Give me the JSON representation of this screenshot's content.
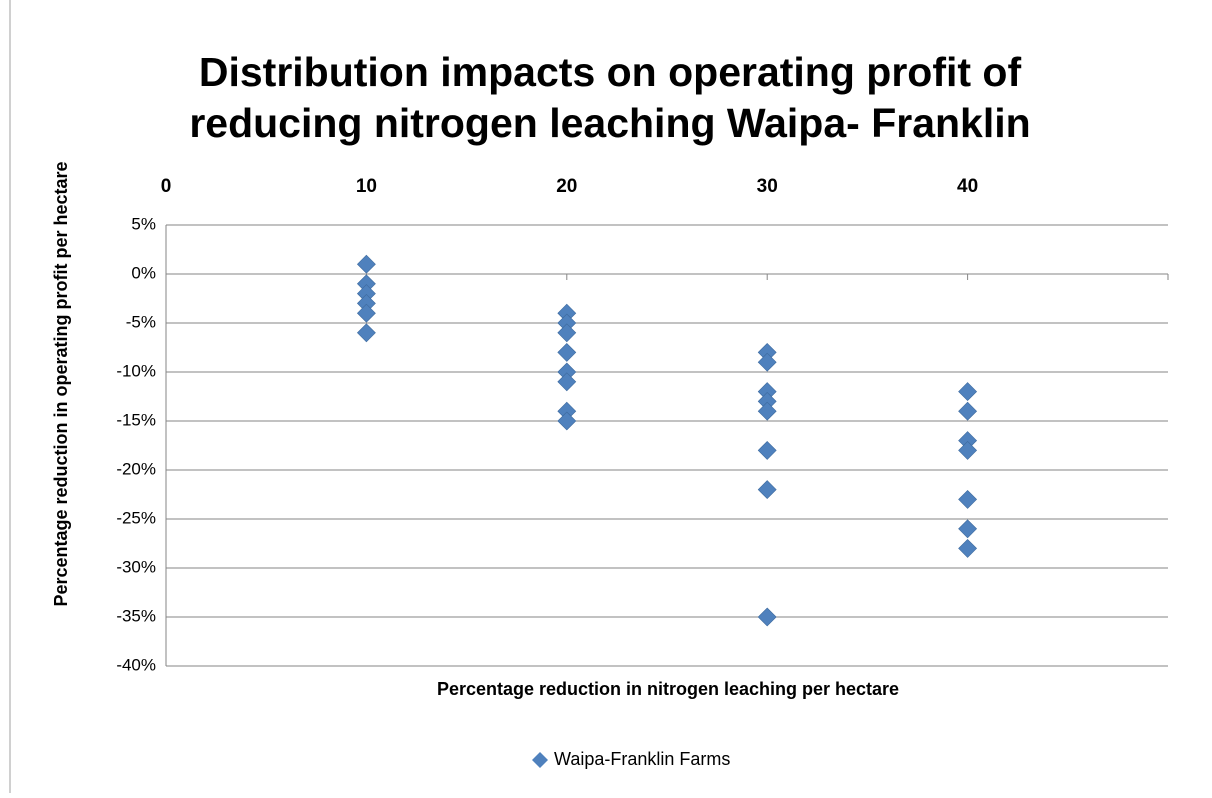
{
  "chart_data": {
    "type": "scatter",
    "title": [
      "Distribution impacts on operating profit of",
      "reducing nitrogen leaching Waipa- Franklin"
    ],
    "x_label": "Percentage reduction in nitrogen leaching per hectare",
    "y_label": "Percentage reduction in operating profit per hectare",
    "xlim": [
      0,
      50
    ],
    "xticks": [
      0,
      10,
      20,
      30,
      40
    ],
    "ylim": [
      -40,
      5
    ],
    "yticks": [
      {
        "value": 5,
        "label": "5%"
      },
      {
        "value": 0,
        "label": "0%"
      },
      {
        "value": -5,
        "label": "-5%"
      },
      {
        "value": -10,
        "label": "-10%"
      },
      {
        "value": -15,
        "label": "-15%"
      },
      {
        "value": -20,
        "label": "-20%"
      },
      {
        "value": -25,
        "label": "-25%"
      },
      {
        "value": -30,
        "label": "-30%"
      },
      {
        "value": -35,
        "label": "-35%"
      },
      {
        "value": -40,
        "label": "-40%"
      }
    ],
    "grid": true,
    "legend": "bottom",
    "series": [
      {
        "name": "Waipa-Franklin Farms",
        "color": "#4f81bd",
        "x": [
          10,
          10,
          10,
          10,
          10,
          10,
          20,
          20,
          20,
          20,
          20,
          20,
          20,
          20,
          30,
          30,
          30,
          30,
          30,
          30,
          30,
          30,
          40,
          40,
          40,
          40,
          40,
          40,
          40
        ],
        "values": [
          1,
          -1,
          -2,
          -3,
          -4,
          -6,
          -4,
          -5,
          -6,
          -8,
          -10,
          -11,
          -14,
          -15,
          -8,
          -9,
          -12,
          -13,
          -14,
          -18,
          -22,
          -35,
          -12,
          -14,
          -17,
          -18,
          -23,
          -26,
          -28
        ]
      }
    ]
  }
}
